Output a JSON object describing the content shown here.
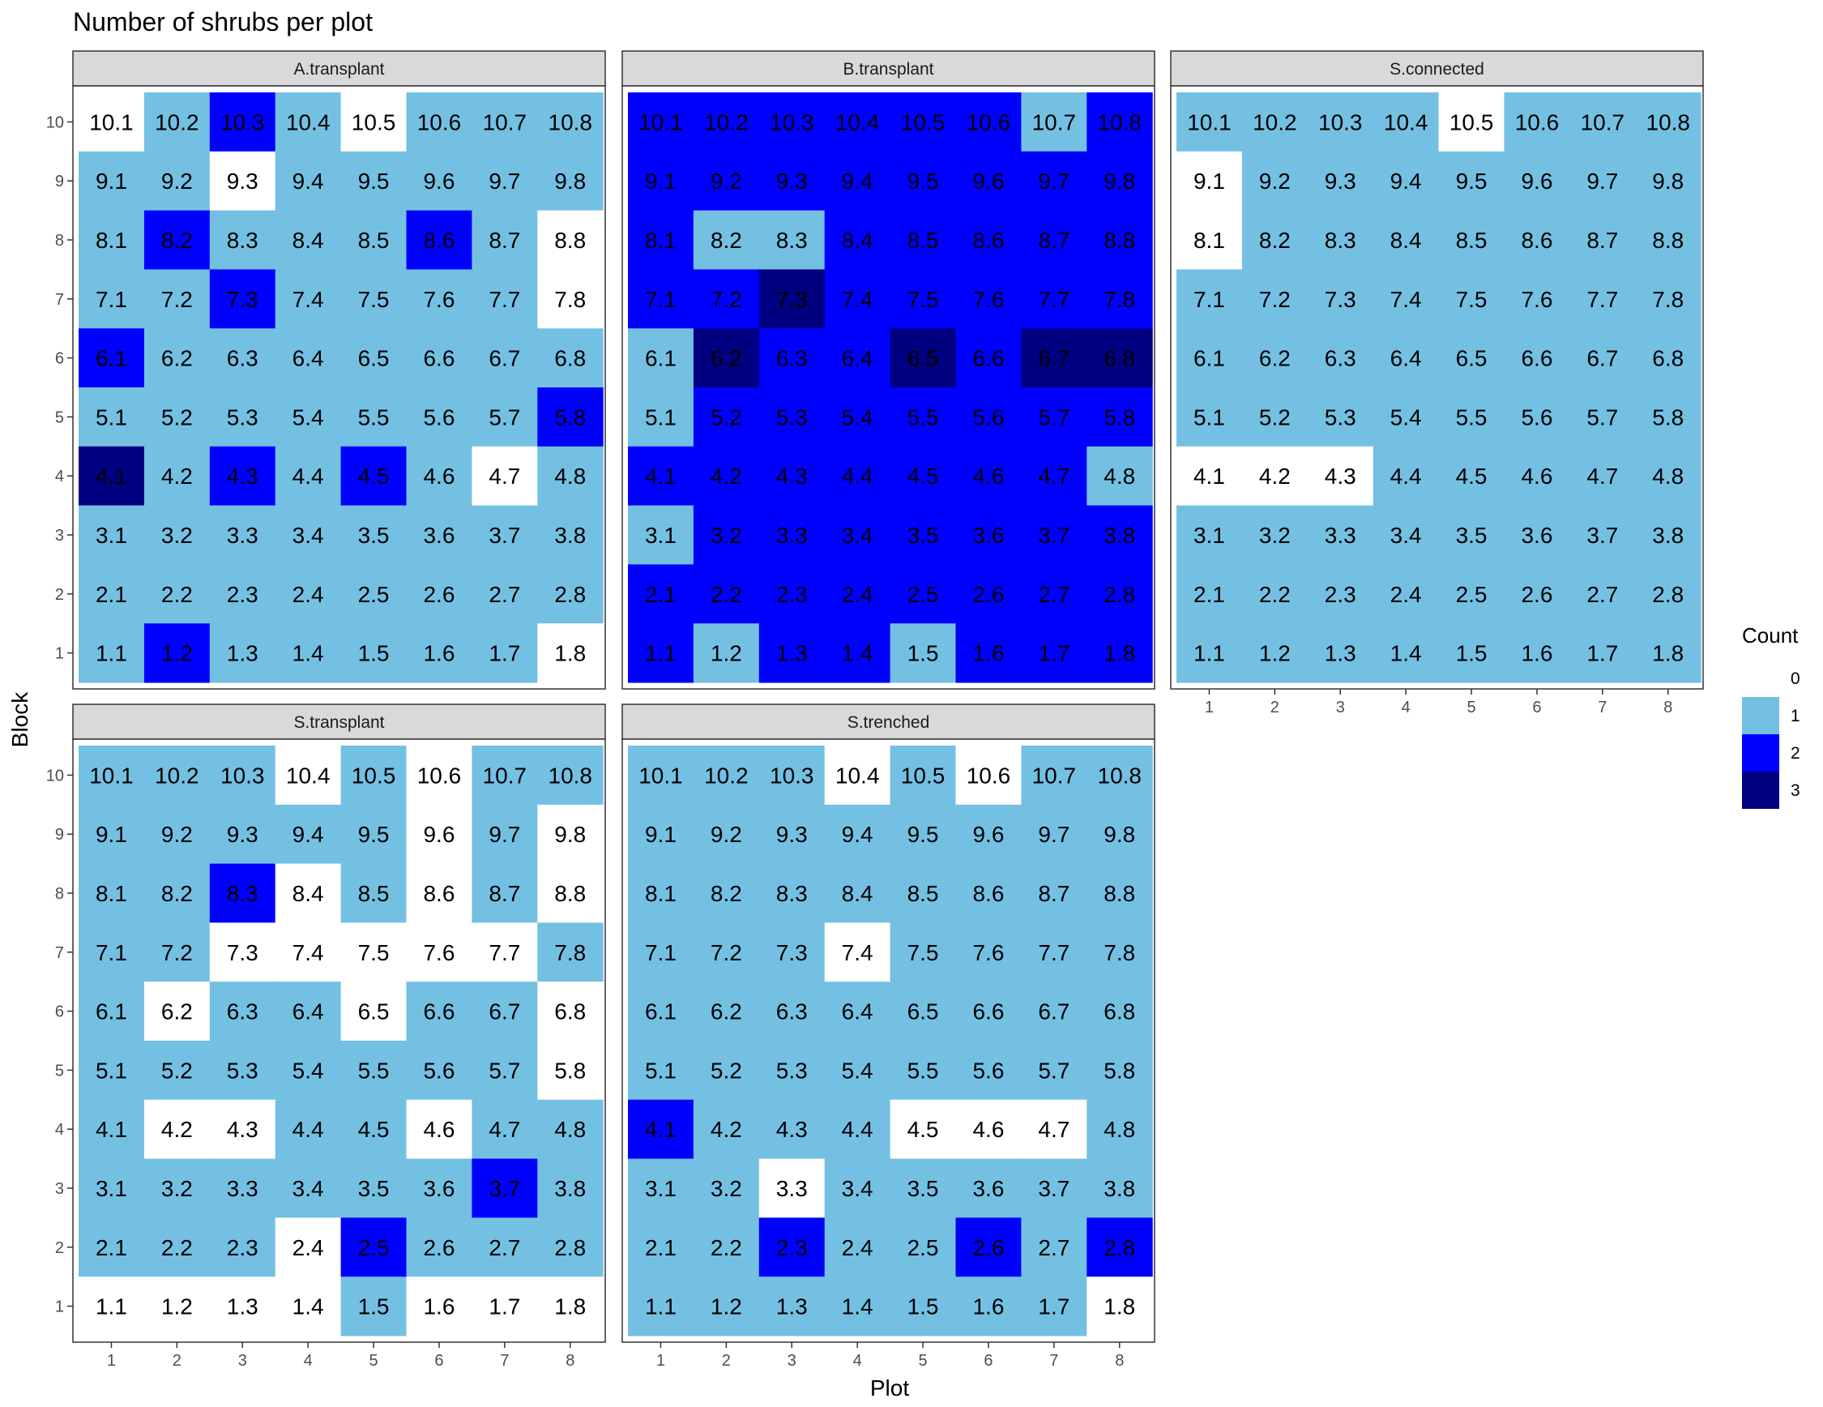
{
  "chart_data": {
    "type": "heatmap",
    "title": "Number of shrubs per plot",
    "xlabel": "Plot",
    "ylabel": "Block",
    "x_ticks": [
      "1",
      "2",
      "3",
      "4",
      "5",
      "6",
      "7",
      "8"
    ],
    "y_ticks": [
      "1",
      "2",
      "3",
      "4",
      "5",
      "6",
      "7",
      "8",
      "9",
      "10"
    ],
    "legend": {
      "title": "Count",
      "placement": "right",
      "levels": [
        {
          "label": "0",
          "color": "#ffffff"
        },
        {
          "label": "1",
          "color": "#74c0e3"
        },
        {
          "label": "2",
          "color": "#0000ff"
        },
        {
          "label": "3",
          "color": "#000080"
        }
      ]
    },
    "grid": false,
    "cell_labels": "Block.Plot",
    "row_order_note": "counts rows listed from Block 10 (top) to Block 1 (bottom), columns Plot 1..8",
    "panels": [
      {
        "name": "A.transplant",
        "counts": [
          [
            0,
            1,
            2,
            1,
            0,
            1,
            1,
            1
          ],
          [
            1,
            1,
            0,
            1,
            1,
            1,
            1,
            1
          ],
          [
            1,
            2,
            1,
            1,
            1,
            2,
            1,
            0
          ],
          [
            1,
            1,
            2,
            1,
            1,
            1,
            1,
            0
          ],
          [
            2,
            1,
            1,
            1,
            1,
            1,
            1,
            1
          ],
          [
            1,
            1,
            1,
            1,
            1,
            1,
            1,
            2
          ],
          [
            3,
            1,
            2,
            1,
            2,
            1,
            0,
            1
          ],
          [
            1,
            1,
            1,
            1,
            1,
            1,
            1,
            1
          ],
          [
            1,
            1,
            1,
            1,
            1,
            1,
            1,
            1
          ],
          [
            1,
            2,
            1,
            1,
            1,
            1,
            1,
            0
          ]
        ]
      },
      {
        "name": "B.transplant",
        "counts": [
          [
            2,
            2,
            2,
            2,
            2,
            2,
            1,
            2
          ],
          [
            2,
            2,
            2,
            2,
            2,
            2,
            2,
            2
          ],
          [
            2,
            1,
            1,
            2,
            2,
            2,
            2,
            2
          ],
          [
            2,
            2,
            3,
            2,
            2,
            2,
            2,
            2
          ],
          [
            1,
            3,
            2,
            2,
            3,
            2,
            3,
            3
          ],
          [
            1,
            2,
            2,
            2,
            2,
            2,
            2,
            2
          ],
          [
            2,
            2,
            2,
            2,
            2,
            2,
            2,
            1
          ],
          [
            1,
            2,
            2,
            2,
            2,
            2,
            2,
            2
          ],
          [
            2,
            2,
            2,
            2,
            2,
            2,
            2,
            2
          ],
          [
            2,
            1,
            2,
            2,
            1,
            2,
            2,
            2
          ]
        ]
      },
      {
        "name": "S.connected",
        "counts": [
          [
            1,
            1,
            1,
            1,
            0,
            1,
            1,
            1
          ],
          [
            0,
            1,
            1,
            1,
            1,
            1,
            1,
            1
          ],
          [
            0,
            1,
            1,
            1,
            1,
            1,
            1,
            1
          ],
          [
            1,
            1,
            1,
            1,
            1,
            1,
            1,
            1
          ],
          [
            1,
            1,
            1,
            1,
            1,
            1,
            1,
            1
          ],
          [
            1,
            1,
            1,
            1,
            1,
            1,
            1,
            1
          ],
          [
            0,
            0,
            0,
            1,
            1,
            1,
            1,
            1
          ],
          [
            1,
            1,
            1,
            1,
            1,
            1,
            1,
            1
          ],
          [
            1,
            1,
            1,
            1,
            1,
            1,
            1,
            1
          ],
          [
            1,
            1,
            1,
            1,
            1,
            1,
            1,
            1
          ]
        ]
      },
      {
        "name": "S.transplant",
        "counts": [
          [
            1,
            1,
            1,
            0,
            1,
            0,
            1,
            1
          ],
          [
            1,
            1,
            1,
            1,
            1,
            0,
            1,
            0
          ],
          [
            1,
            1,
            2,
            0,
            1,
            0,
            1,
            0
          ],
          [
            1,
            1,
            0,
            0,
            0,
            0,
            0,
            1
          ],
          [
            1,
            0,
            1,
            1,
            0,
            1,
            1,
            0
          ],
          [
            1,
            1,
            1,
            1,
            1,
            1,
            1,
            0
          ],
          [
            1,
            0,
            0,
            1,
            1,
            0,
            1,
            1
          ],
          [
            1,
            1,
            1,
            1,
            1,
            1,
            2,
            1
          ],
          [
            1,
            1,
            1,
            0,
            2,
            1,
            1,
            1
          ],
          [
            0,
            0,
            0,
            0,
            1,
            0,
            0,
            0
          ]
        ]
      },
      {
        "name": "S.trenched",
        "counts": [
          [
            1,
            1,
            1,
            0,
            1,
            0,
            1,
            1
          ],
          [
            1,
            1,
            1,
            1,
            1,
            1,
            1,
            1
          ],
          [
            1,
            1,
            1,
            1,
            1,
            1,
            1,
            1
          ],
          [
            1,
            1,
            1,
            0,
            1,
            1,
            1,
            1
          ],
          [
            1,
            1,
            1,
            1,
            1,
            1,
            1,
            1
          ],
          [
            1,
            1,
            1,
            1,
            1,
            1,
            1,
            1
          ],
          [
            2,
            1,
            1,
            1,
            0,
            0,
            0,
            1
          ],
          [
            1,
            1,
            0,
            1,
            1,
            1,
            1,
            1
          ],
          [
            1,
            1,
            2,
            1,
            1,
            2,
            1,
            2
          ],
          [
            1,
            1,
            1,
            1,
            1,
            1,
            1,
            0
          ]
        ]
      }
    ]
  }
}
